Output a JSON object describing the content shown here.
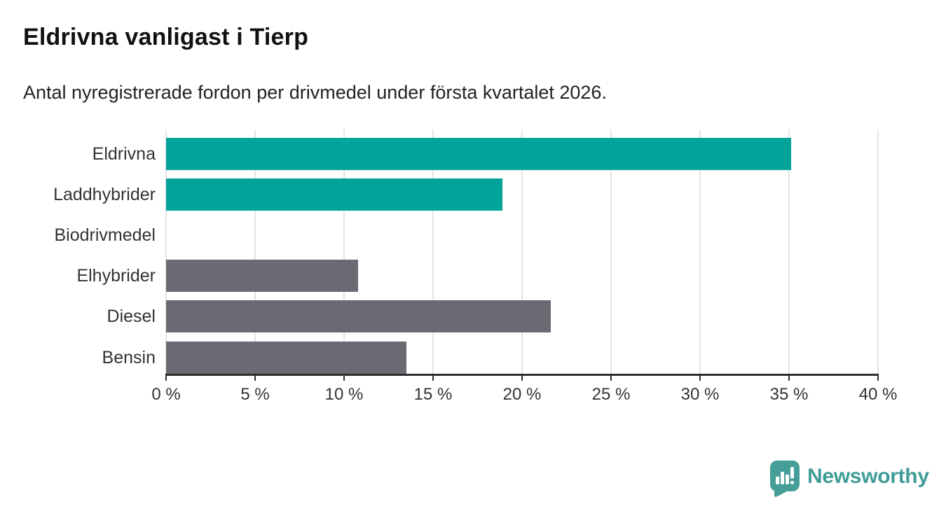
{
  "chart": {
    "title": "Eldrivna vanligast i Tierp",
    "subtitle": "Antal nyregistrerade fordon per drivmedel under första kvartalet 2026."
  },
  "chart_data": {
    "type": "bar",
    "orientation": "horizontal",
    "title": "Eldrivna vanligast i Tierp",
    "subtitle": "Antal nyregistrerade fordon per drivmedel under första kvartalet 2026.",
    "categories": [
      "Eldrivna",
      "Laddhybrider",
      "Biodrivmedel",
      "Elhybrider",
      "Diesel",
      "Bensin"
    ],
    "values": [
      35.1,
      18.9,
      0,
      10.8,
      21.6,
      13.5
    ],
    "bar_colors": [
      "#00a49b",
      "#00a49b",
      "#00a49b",
      "#6a6a72",
      "#6a6a72",
      "#6a6a72"
    ],
    "unit": "%",
    "xlabel": "",
    "ylabel": "",
    "xlim": [
      0,
      40
    ],
    "x_ticks": [
      0,
      5,
      10,
      15,
      20,
      25,
      30,
      35,
      40
    ],
    "x_tick_labels": [
      "0 %",
      "5 %",
      "10 %",
      "15 %",
      "20 %",
      "25 %",
      "30 %",
      "35 %",
      "40 %"
    ],
    "grid": true,
    "legend": false
  },
  "colors": {
    "teal": "#00a49b",
    "gray": "#6a6a72",
    "gridline": "#e4e4e4",
    "axis": "#2e2e2e",
    "text": "#333333",
    "logo_teal": "#3f9c96"
  },
  "logo": {
    "text": "Newsworthy",
    "icon": "speech-bubble-bar-chart-icon"
  }
}
